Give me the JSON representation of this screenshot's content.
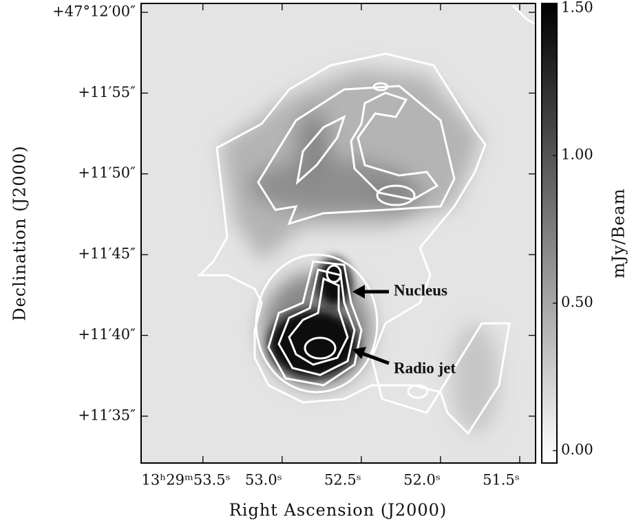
{
  "chart_data": {
    "type": "image",
    "xlabel": "Right Ascension (J2000)",
    "ylabel": "Declination (J2000)",
    "colorbar_label": "mJy/Beam",
    "xlim": [
      53.89,
      51.4
    ],
    "xticks": [
      {
        "value": 53.5,
        "label": "13ʰ29ᵐ53.5ˢ"
      },
      {
        "value": 53.0,
        "label": "53.0ˢ"
      },
      {
        "value": 52.5,
        "label": "52.5ˢ"
      },
      {
        "value": 52.0,
        "label": "52.0ˢ"
      },
      {
        "value": 51.5,
        "label": "51.5ˢ"
      }
    ],
    "ylim": [
      32.1,
      60.55
    ],
    "yticks": [
      {
        "value": 60,
        "label": "+47°12′00″"
      },
      {
        "value": 55,
        "label": "+11′55″"
      },
      {
        "value": 50,
        "label": "+11′50″"
      },
      {
        "value": 45,
        "label": "+11′45″"
      },
      {
        "value": 40,
        "label": "+11′40″"
      },
      {
        "value": 35,
        "label": "+11′35″"
      }
    ],
    "clim": [
      -0.042,
      1.516
    ],
    "cticks": [
      {
        "value": 0,
        "label": "0.00"
      },
      {
        "value": 0.5,
        "label": "0.50"
      },
      {
        "value": 1,
        "label": "1.00"
      },
      {
        "value": 1.5,
        "label": "1.50"
      }
    ],
    "annotations": [
      "Nucleus",
      "Radio jet"
    ]
  }
}
